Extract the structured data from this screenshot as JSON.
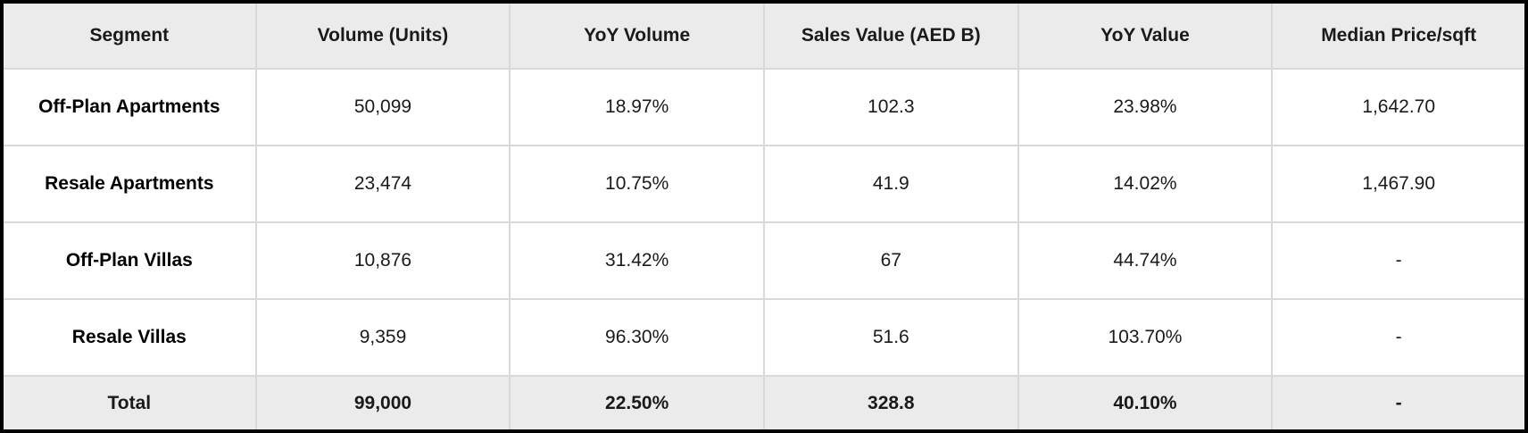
{
  "colors": {
    "header_bg": "#ebebeb",
    "total_bg": "#ebebeb",
    "row_bg": "#ffffff",
    "outer_border": "#000000",
    "inner_border": "#d9d9d9",
    "text": "#1a1a1a"
  },
  "table": {
    "columns": [
      "Segment",
      "Volume (Units)",
      "YoY Volume",
      "Sales Value (AED B)",
      "YoY Value",
      "Median Price/sqft"
    ],
    "rows": [
      [
        "Off-Plan Apartments",
        "50,099",
        "18.97%",
        "102.3",
        "23.98%",
        "1,642.70"
      ],
      [
        "Resale Apartments",
        "23,474",
        "10.75%",
        "41.9",
        "14.02%",
        "1,467.90"
      ],
      [
        "Off-Plan Villas",
        "10,876",
        "31.42%",
        "67",
        "44.74%",
        "-"
      ],
      [
        "Resale Villas",
        "9,359",
        "96.30%",
        "51.6",
        "103.70%",
        "-"
      ]
    ],
    "total": [
      "Total",
      "99,000",
      "22.50%",
      "328.8",
      "40.10%",
      "-"
    ]
  },
  "chart_data": {
    "type": "table",
    "title": "",
    "columns": [
      "Segment",
      "Volume (Units)",
      "YoY Volume",
      "Sales Value (AED B)",
      "YoY Value",
      "Median Price/sqft"
    ],
    "rows": [
      {
        "segment": "Off-Plan Apartments",
        "volume_units": 50099,
        "yoy_volume_pct": 18.97,
        "sales_value_aed_b": 102.3,
        "yoy_value_pct": 23.98,
        "median_price_sqft": 1642.7
      },
      {
        "segment": "Resale Apartments",
        "volume_units": 23474,
        "yoy_volume_pct": 10.75,
        "sales_value_aed_b": 41.9,
        "yoy_value_pct": 14.02,
        "median_price_sqft": 1467.9
      },
      {
        "segment": "Off-Plan Villas",
        "volume_units": 10876,
        "yoy_volume_pct": 31.42,
        "sales_value_aed_b": 67,
        "yoy_value_pct": 44.74,
        "median_price_sqft": null
      },
      {
        "segment": "Resale Villas",
        "volume_units": 9359,
        "yoy_volume_pct": 96.3,
        "sales_value_aed_b": 51.6,
        "yoy_value_pct": 103.7,
        "median_price_sqft": null
      },
      {
        "segment": "Total",
        "volume_units": 99000,
        "yoy_volume_pct": 22.5,
        "sales_value_aed_b": 328.8,
        "yoy_value_pct": 40.1,
        "median_price_sqft": null
      }
    ],
    "layout": {
      "header_band": true,
      "total_band": true,
      "grid": true,
      "cell_alignment": "center"
    }
  }
}
